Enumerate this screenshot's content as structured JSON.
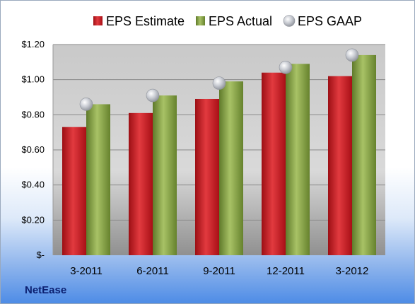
{
  "chart_data": {
    "type": "bar",
    "categories": [
      "3-2011",
      "6-2011",
      "9-2011",
      "12-2011",
      "3-2012"
    ],
    "series": [
      {
        "name": "EPS Estimate",
        "kind": "bar",
        "color": "#c0141c",
        "values": [
          0.73,
          0.81,
          0.89,
          1.04,
          1.02
        ]
      },
      {
        "name": "EPS Actual",
        "kind": "bar",
        "color": "#7d9a3a",
        "values": [
          0.86,
          0.91,
          0.99,
          1.09,
          1.14
        ]
      },
      {
        "name": "EPS GAAP",
        "kind": "marker",
        "color": "#b9bcc4",
        "values": [
          0.86,
          0.91,
          0.98,
          1.07,
          1.14
        ]
      }
    ],
    "ylim": [
      0,
      1.2
    ],
    "yticks": [
      {
        "value": 0,
        "label": "$-"
      },
      {
        "value": 0.2,
        "label": "$0.20"
      },
      {
        "value": 0.4,
        "label": "$0.40"
      },
      {
        "value": 0.6,
        "label": "$0.60"
      },
      {
        "value": 0.8,
        "label": "$0.80"
      },
      {
        "value": 1.0,
        "label": "$1.00"
      },
      {
        "value": 1.2,
        "label": "$1.20"
      }
    ],
    "grid": true,
    "legend": "top"
  },
  "company": "NetEase"
}
